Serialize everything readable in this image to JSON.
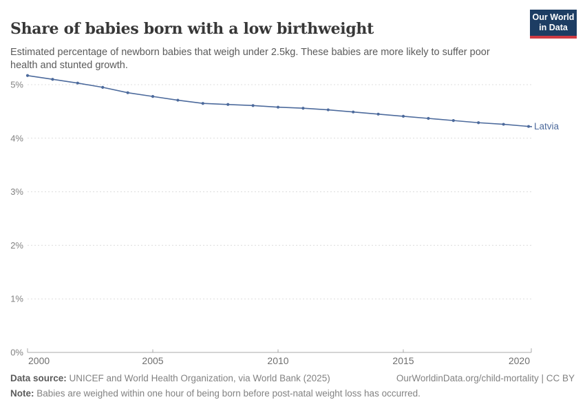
{
  "header": {
    "title": "Share of babies born with a low birthweight",
    "subtitle": "Estimated percentage of newborn babies that weigh under 2.5kg. These babies are more likely to suffer poor health and stunted growth.",
    "logo": {
      "line1": "Our World",
      "line2": "in Data"
    }
  },
  "chart_data": {
    "type": "line",
    "title": "Share of babies born with a low birthweight",
    "x": [
      2000,
      2001,
      2002,
      2003,
      2004,
      2005,
      2006,
      2007,
      2008,
      2009,
      2010,
      2011,
      2012,
      2013,
      2014,
      2015,
      2016,
      2017,
      2018,
      2019,
      2020
    ],
    "series": [
      {
        "name": "Latvia",
        "values": [
          5.17,
          5.1,
          5.03,
          4.95,
          4.85,
          4.78,
          4.71,
          4.65,
          4.63,
          4.61,
          4.58,
          4.56,
          4.53,
          4.49,
          4.45,
          4.41,
          4.37,
          4.33,
          4.29,
          4.26,
          4.22
        ]
      }
    ],
    "xlabel": "",
    "ylabel": "",
    "xlim": [
      2000,
      2020
    ],
    "ylim": [
      0,
      5.3
    ],
    "yticks": [
      {
        "value": 0,
        "label": "0%"
      },
      {
        "value": 1,
        "label": "1%"
      },
      {
        "value": 2,
        "label": "2%"
      },
      {
        "value": 3,
        "label": "3%"
      },
      {
        "value": 4,
        "label": "4%"
      },
      {
        "value": 5,
        "label": "5%"
      }
    ],
    "xticks": [
      {
        "value": 2000,
        "label": "2000"
      },
      {
        "value": 2005,
        "label": "2005"
      },
      {
        "value": 2010,
        "label": "2010"
      },
      {
        "value": 2015,
        "label": "2015"
      },
      {
        "value": 2020,
        "label": "2020"
      }
    ],
    "grid": "horizontal-dashed",
    "legend": "end-of-line-label"
  },
  "footer": {
    "datasource_label": "Data source:",
    "datasource": " UNICEF and World Health Organization, via World Bank (2025)",
    "citation": "OurWorldinData.org/child-mortality | CC BY",
    "note_label": "Note:",
    "note": " Babies are weighed within one hour of being born before post-natal weight loss has occurred."
  },
  "colors": {
    "line": "#4C6A9C",
    "entity_label": "#4C6A9C",
    "gridline": "#dcdcdc",
    "axis": "#a9a9a9",
    "y_tick_label": "#828282",
    "x_tick_label": "#6e6e6e",
    "logo_bg": "#1d3d63",
    "logo_bar": "#cf3b43"
  }
}
